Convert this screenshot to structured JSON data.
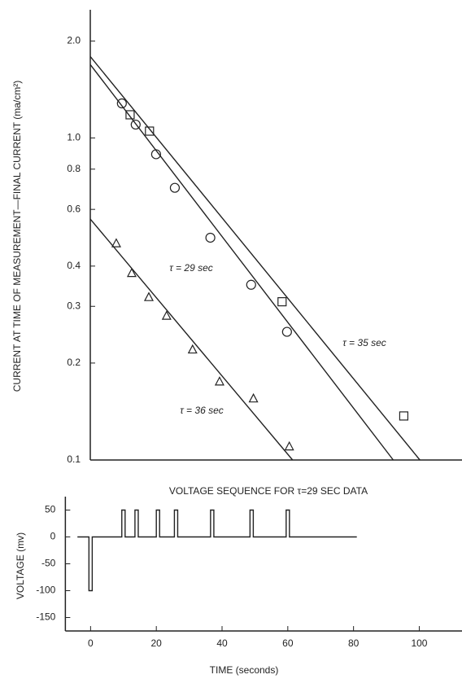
{
  "chart_data": [
    {
      "type": "line",
      "y_label": "CURRENT AT TIME OF MEASUREMENT—FINAL CURRENT (ma/cm²)",
      "log_y": true,
      "xlim": [
        0,
        113
      ],
      "ylim": [
        0.1,
        2.5
      ],
      "yticks": [
        0.1,
        0.2,
        0.3,
        0.4,
        0.6,
        0.8,
        {
          "value": 1,
          "label": "1.0"
        },
        {
          "value": 2,
          "label": "2.0"
        }
      ],
      "series": [
        {
          "marker": "circle",
          "color": "#222222",
          "x": [
            9.6,
            13.8,
            20,
            25.7,
            36.5,
            48.9,
            59.8
          ],
          "values": [
            1.28,
            1.1,
            0.89,
            0.7,
            0.49,
            0.35,
            0.25
          ]
        },
        {
          "marker": "square",
          "color": "#222222",
          "x": [
            12.1,
            18,
            58.3,
            95.3
          ],
          "values": [
            1.18,
            1.05,
            0.31,
            0.137
          ]
        },
        {
          "marker": "triangle",
          "color": "#222222",
          "x": [
            7.9,
            12.6,
            17.8,
            23.2,
            31.1,
            39.3,
            49.6,
            60.5
          ],
          "values": [
            0.47,
            0.38,
            0.32,
            0.28,
            0.22,
            0.175,
            0.155,
            0.11
          ]
        },
        {
          "name": "τ = 29 sec",
          "color": "#222222",
          "x": [
            0,
            92.1
          ],
          "values": [
            1.69,
            0.1
          ]
        },
        {
          "name": "τ = 35 sec",
          "color": "#222222",
          "x": [
            0,
            100.2
          ],
          "values": [
            1.79,
            0.1
          ]
        },
        {
          "name": "τ = 36 sec",
          "color": "#222222",
          "x": [
            0,
            61.5
          ],
          "values": [
            0.56,
            0.1
          ]
        }
      ]
    },
    {
      "type": "line",
      "title": "VOLTAGE SEQUENCE FOR τ=29 SEC DATA",
      "x_label": "TIME (seconds)",
      "y_label": "VOLTAGE (mv)",
      "log_y": false,
      "xlim": [
        -9,
        113
      ],
      "ylim": [
        -175,
        75
      ],
      "xticks": [
        0,
        20,
        40,
        60,
        80,
        100
      ],
      "yticks": [
        50,
        0,
        -50,
        -100,
        -150
      ],
      "series": [
        {
          "color": "#222222",
          "x": [
            -4,
            -0.5,
            -0.5,
            0.5,
            0.5,
            9.5,
            9.5,
            10.5,
            10.5,
            13.5,
            13.5,
            14.5,
            14.5,
            20,
            20,
            21,
            21,
            25.5,
            25.5,
            26.5,
            26.5,
            36.5,
            36.5,
            37.5,
            37.5,
            48.5,
            48.5,
            49.5,
            49.5,
            59.5,
            59.5,
            60.5,
            60.5,
            81
          ],
          "values": [
            0,
            0,
            -100,
            -100,
            0,
            0,
            50,
            50,
            0,
            0,
            50,
            50,
            0,
            0,
            50,
            50,
            0,
            0,
            50,
            50,
            0,
            0,
            50,
            50,
            0,
            0,
            50,
            50,
            0,
            0,
            50,
            50,
            0,
            0
          ]
        }
      ]
    }
  ]
}
